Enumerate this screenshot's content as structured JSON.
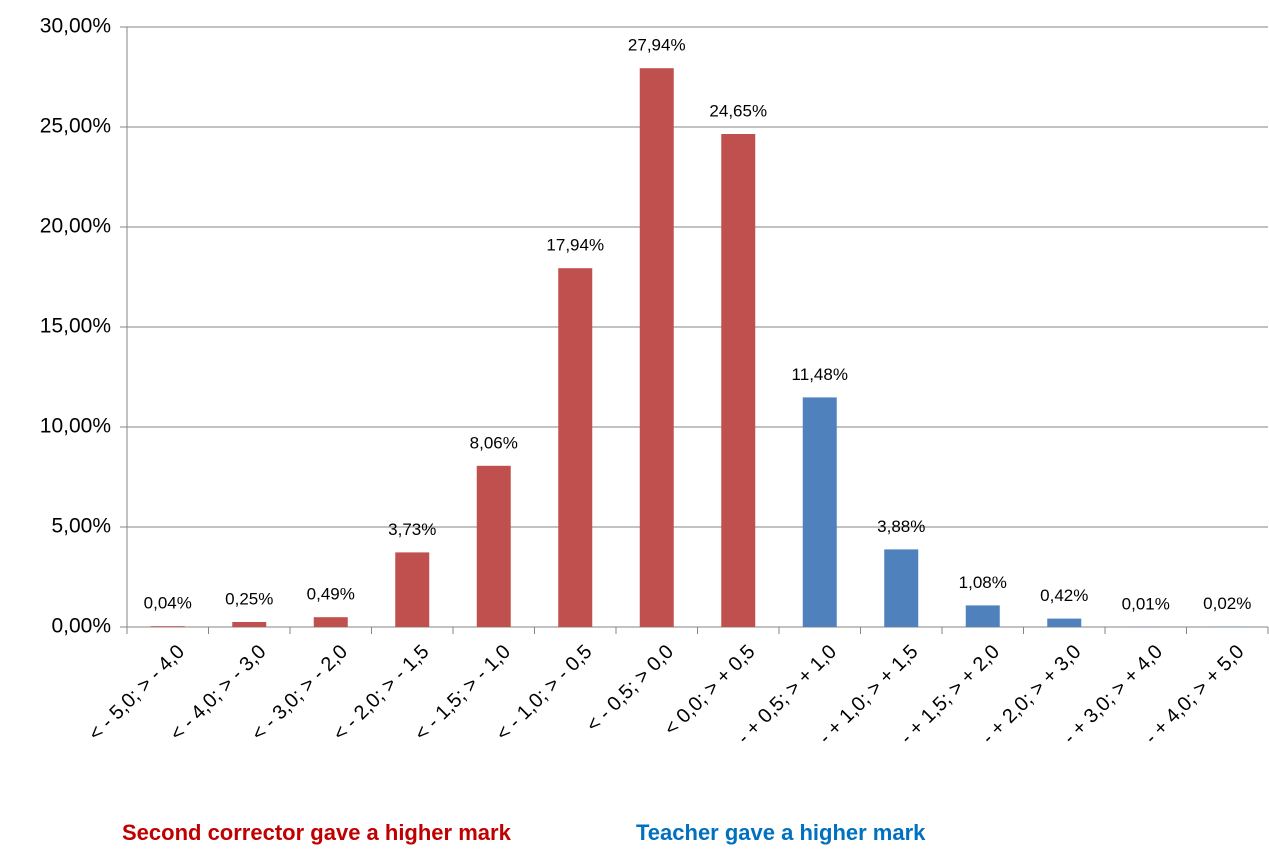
{
  "chart_data": {
    "type": "bar",
    "categories": [
      "< - 5,0; > - 4,0",
      "< - 4,0; > - 3,0",
      "< - 3,0; > - 2,0",
      "< - 2,0; > - 1,5",
      "< - 1,5; > - 1,0",
      "< - 1,0; > - 0,5",
      "< - 0,5; > 0,0",
      "< 0,0; > + 0,5",
      "- + 0,5; > + 1,0",
      "- + 1,0; > + 1,5",
      "- + 1,5; > + 2,0",
      "- + 2,0; > + 3,0",
      "- + 3,0; > + 4,0",
      "- + 4,0; > + 5,0"
    ],
    "values": [
      0.04,
      0.25,
      0.49,
      3.73,
      8.06,
      17.94,
      27.94,
      24.65,
      11.48,
      3.88,
      1.08,
      0.42,
      0.01,
      0.02
    ],
    "value_labels": [
      "0,04%",
      "0,25%",
      "0,49%",
      "3,73%",
      "8,06%",
      "17,94%",
      "27,94%",
      "24,65%",
      "11,48%",
      "3,88%",
      "1,08%",
      "0,42%",
      "0,01%",
      "0,02%"
    ],
    "colors": [
      "#c0504d",
      "#c0504d",
      "#c0504d",
      "#c0504d",
      "#c0504d",
      "#c0504d",
      "#c0504d",
      "#c0504d",
      "#4f81bd",
      "#4f81bd",
      "#4f81bd",
      "#4f81bd",
      "#4f81bd",
      "#4f81bd"
    ],
    "ylim": [
      0,
      30
    ],
    "yticks": [
      {
        "value": 0,
        "label": "0,00%"
      },
      {
        "value": 5,
        "label": "5,00%"
      },
      {
        "value": 10,
        "label": "10,00%"
      },
      {
        "value": 15,
        "label": "15,00%"
      },
      {
        "value": 20,
        "label": "20,00%"
      },
      {
        "value": 25,
        "label": "25,00%"
      },
      {
        "value": 30,
        "label": "30,00%"
      }
    ],
    "grid": true,
    "annotations": [
      {
        "text": "Second corrector gave a higher mark",
        "color": "#c00000"
      },
      {
        "text": "Teacher gave a higher mark",
        "color": "#0070c0"
      }
    ]
  }
}
